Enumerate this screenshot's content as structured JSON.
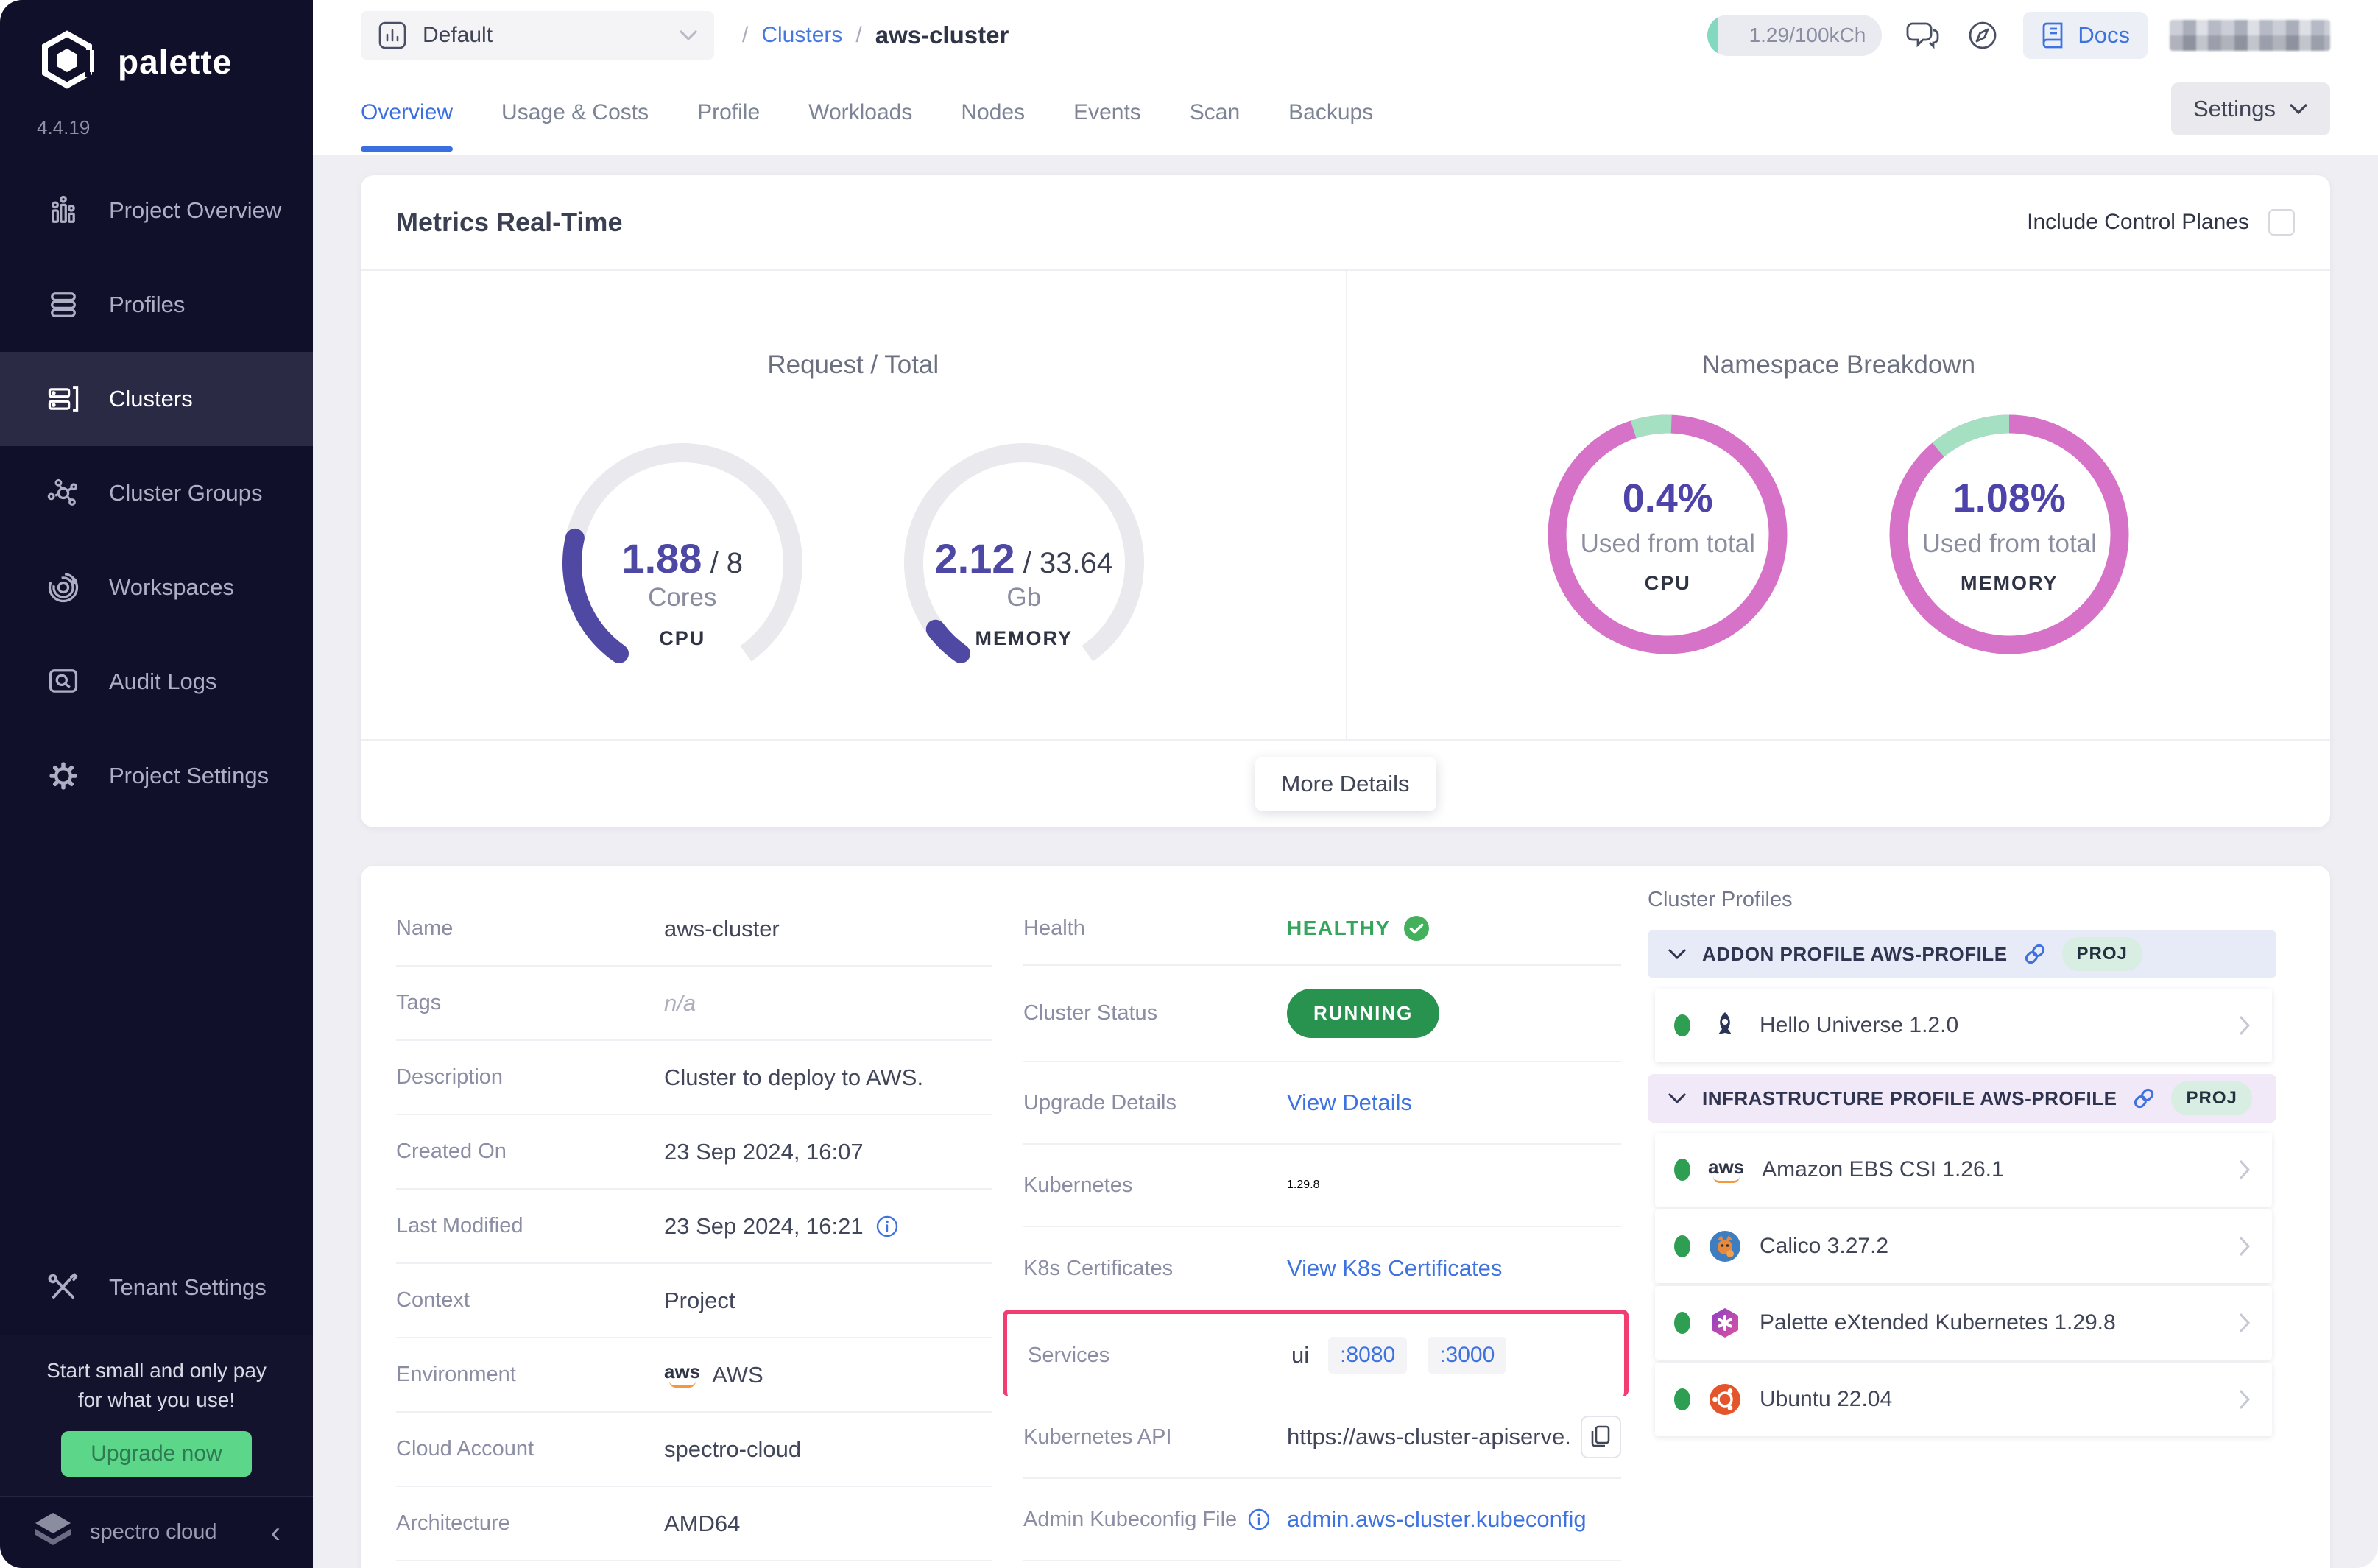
{
  "colors": {
    "sidebar_bg": "#11102A",
    "accent_blue": "#3D72E0",
    "gauge_purple": "#4F49A3",
    "donut_pink": "#D673C8",
    "donut_green": "#A6E0C3",
    "healthy_green": "#36A55C",
    "running_green": "#27934F",
    "highlight_pink": "#F23C72",
    "upgrade_green": "#5CD689"
  },
  "sidebar": {
    "brand": "palette",
    "version": "4.4.19",
    "items": [
      "Project Overview",
      "Profiles",
      "Clusters",
      "Cluster Groups",
      "Workspaces",
      "Audit Logs",
      "Project Settings"
    ],
    "tenant": "Tenant Settings",
    "upsell": {
      "line1": "Start small and only pay",
      "line2": "for what you use!",
      "button": "Upgrade now"
    },
    "footer_brand": "spectro cloud"
  },
  "topbar": {
    "project_selector": "Default",
    "breadcrumb": {
      "sep": "/",
      "section": "Clusters",
      "current": "aws-cluster"
    },
    "usage_badge": "1.29/100kCh",
    "docs_label": "Docs"
  },
  "tabs": [
    "Overview",
    "Usage & Costs",
    "Profile",
    "Workloads",
    "Nodes",
    "Events",
    "Scan",
    "Backups"
  ],
  "settings_label": "Settings",
  "metrics": {
    "title": "Metrics Real-Time",
    "include_control_planes": "Include Control Planes",
    "request_total": {
      "title": "Request / Total",
      "cpu": {
        "used": "1.88",
        "total": "/ 8",
        "unit": "Cores",
        "label": "CPU",
        "frac": 0.235
      },
      "memory": {
        "used": "2.12",
        "total": "/ 33.64",
        "unit": "Gb",
        "label": "MEMORY",
        "frac": 0.063
      }
    },
    "namespace": {
      "title": "Namespace Breakdown",
      "cpu": {
        "pct": "0.4%",
        "caption": "Used from total",
        "label": "CPU",
        "green_start": 252,
        "green_sweep": 20
      },
      "memory": {
        "pct": "1.08%",
        "caption": "Used from total",
        "label": "MEMORY",
        "green_start": 230,
        "green_sweep": 40
      }
    },
    "more_details": "More Details"
  },
  "details": {
    "left": [
      {
        "label": "Name",
        "value": "aws-cluster"
      },
      {
        "label": "Tags",
        "value": "n/a"
      },
      {
        "label": "Description",
        "value": "Cluster to deploy to AWS."
      },
      {
        "label": "Created On",
        "value": "23 Sep 2024, 16:07"
      },
      {
        "label": "Last Modified",
        "value": "23 Sep 2024, 16:21"
      },
      {
        "label": "Context",
        "value": "Project"
      },
      {
        "label": "Environment",
        "value": "AWS"
      },
      {
        "label": "Cloud Account",
        "value": "spectro-cloud"
      },
      {
        "label": "Architecture",
        "value": "AMD64"
      }
    ],
    "middle": {
      "health_label": "Health",
      "health_value": "HEALTHY",
      "status_label": "Cluster Status",
      "status_value": "RUNNING",
      "upgrade_label": "Upgrade Details",
      "upgrade_link": "View Details",
      "k8s_label": "Kubernetes",
      "k8s_value": "1.29.8",
      "cert_label": "K8s Certificates",
      "cert_link": "View K8s Certificates",
      "services_label": "Services",
      "services_name": "ui",
      "ports": [
        ":8080",
        ":3000"
      ],
      "api_label": "Kubernetes API",
      "api_value": "https://aws-cluster-apiserve...",
      "kubeconfig_label": "Admin Kubeconfig File",
      "kubeconfig_link": "admin.aws-cluster.kubeconfig"
    }
  },
  "profiles": {
    "title": "Cluster Profiles",
    "groups": [
      {
        "header": "ADDON PROFILE AWS-PROFILE",
        "badge": "PROJ"
      },
      {
        "header": "INFRASTRUCTURE PROFILE AWS-PROFILE",
        "badge": "PROJ"
      }
    ],
    "items_addon": [
      {
        "name": "Hello Universe 1.2.0"
      }
    ],
    "items_infra": [
      {
        "name": "Amazon EBS CSI 1.26.1"
      },
      {
        "name": "Calico 3.27.2"
      },
      {
        "name": "Palette eXtended Kubernetes 1.29.8"
      },
      {
        "name": "Ubuntu 22.04"
      }
    ]
  }
}
